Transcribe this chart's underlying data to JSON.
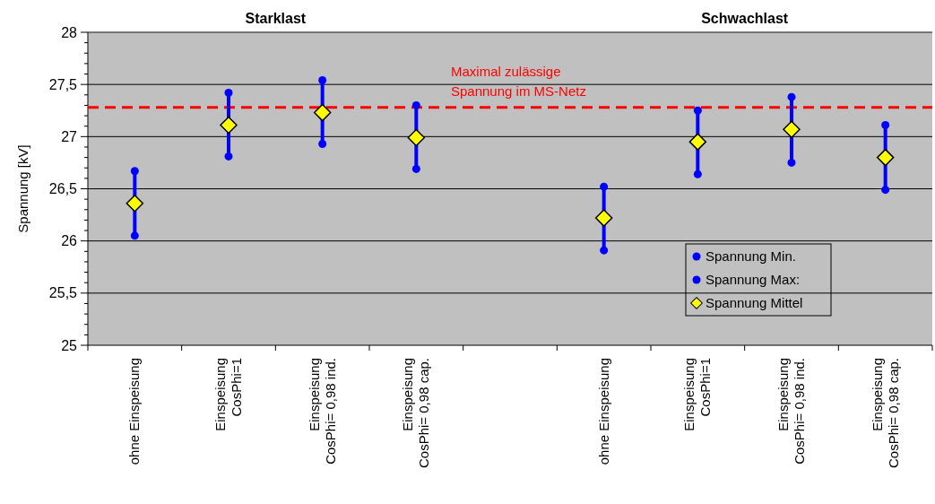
{
  "chart_data": {
    "type": "scatter",
    "ylabel": "Spannung [kV]",
    "categories": [
      "ohne Einspeisung",
      "Einspeisung\nCosPhi=1",
      "Einspeisung\nCosPhi= 0,98 ind.",
      "Einspeisung\nCosPhi= 0,98 cap.",
      null,
      "ohne Einspeisung",
      "Einspeisung\nCosPhi=1",
      "Einspeisung\nCosPhi= 0,98 ind.",
      "Einspeisung\nCosPhi= 0,98 cap."
    ],
    "series": [
      {
        "name": "Spannung Min.",
        "type": "scatter",
        "marker": "circle",
        "color": "#0000ff",
        "values": [
          26.05,
          26.81,
          26.93,
          26.69,
          null,
          25.91,
          26.64,
          26.75,
          26.49
        ]
      },
      {
        "name": "Spannung Max:",
        "type": "scatter",
        "marker": "circle",
        "color": "#0000ff",
        "values": [
          26.67,
          27.42,
          27.54,
          27.3,
          null,
          26.52,
          27.25,
          27.38,
          27.11
        ]
      },
      {
        "name": "Spannung Mittel",
        "type": "scatter",
        "color": "#ffff00",
        "marker": "diamond",
        "values": [
          26.36,
          27.11,
          27.23,
          26.99,
          null,
          26.22,
          26.95,
          27.07,
          26.8
        ]
      }
    ],
    "ylim": [
      25,
      28
    ],
    "yticks": [
      25,
      {
        "value": 25.1,
        "label": null
      },
      {
        "value": 25.2,
        "label": null
      },
      {
        "value": 25.3,
        "label": null
      },
      {
        "value": 25.4,
        "label": null
      },
      {
        "value": 25.5,
        "label": "25,5"
      },
      {
        "value": 25.6,
        "label": null
      },
      {
        "value": 25.7,
        "label": null
      },
      {
        "value": 25.8,
        "label": null
      },
      {
        "value": 25.9,
        "label": null
      },
      26,
      {
        "value": 26.1,
        "label": null
      },
      {
        "value": 26.2,
        "label": null
      },
      {
        "value": 26.3,
        "label": null
      },
      {
        "value": 26.4,
        "label": null
      },
      {
        "value": 26.5,
        "label": "26,5"
      },
      {
        "value": 26.6,
        "label": null
      },
      {
        "value": 26.7,
        "label": null
      },
      {
        "value": 26.8,
        "label": null
      },
      {
        "value": 26.9,
        "label": null
      },
      27,
      {
        "value": 27.1,
        "label": null
      },
      {
        "value": 27.2,
        "label": null
      },
      {
        "value": 27.3,
        "label": null
      },
      {
        "value": 27.4,
        "label": null
      },
      {
        "value": 27.5,
        "label": "27,5"
      },
      {
        "value": 27.6,
        "label": null
      },
      {
        "value": 27.7,
        "label": null
      },
      {
        "value": 27.8,
        "label": null
      },
      {
        "value": 27.9,
        "label": null
      },
      28
    ],
    "grid": "y",
    "ref_lines": [
      {
        "axis": "y",
        "value": 27.28,
        "label": "Maximal zulässige\nSpannung im MS-Netz",
        "color": "#ff0000",
        "line_style": "dashed"
      }
    ],
    "annotations": [
      "Starklast",
      "Schwachlast"
    ],
    "legend": "bottom right"
  }
}
